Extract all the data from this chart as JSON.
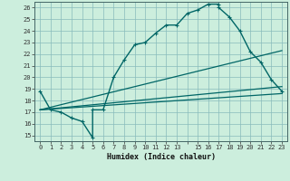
{
  "title": "",
  "xlabel": "Humidex (Indice chaleur)",
  "bg_color": "#cceedd",
  "grid_color": "#88bbbb",
  "line_color": "#006666",
  "xlim": [
    -0.5,
    23.5
  ],
  "ylim": [
    14.5,
    26.5
  ],
  "yticks": [
    15,
    16,
    17,
    18,
    19,
    20,
    21,
    22,
    23,
    24,
    25,
    26
  ],
  "xticks": [
    0,
    1,
    2,
    3,
    4,
    5,
    6,
    7,
    8,
    9,
    10,
    11,
    12,
    13,
    14,
    15,
    16,
    17,
    18,
    19,
    20,
    21,
    22,
    23
  ],
  "xtick_labels": [
    "0",
    "1",
    "2",
    "3",
    "4",
    "5",
    "6",
    "7",
    "8",
    "9",
    "10",
    "11",
    "12",
    "13",
    "",
    "15",
    "16",
    "17",
    "18",
    "19",
    "20",
    "21",
    "22",
    "23"
  ],
  "line1_x": [
    0,
    1,
    2,
    3,
    4,
    5,
    5,
    6,
    7,
    8,
    9,
    10,
    11,
    12,
    13,
    14,
    15,
    16,
    17,
    17,
    18,
    19,
    20,
    21,
    22,
    23
  ],
  "line1_y": [
    18.8,
    17.2,
    17.0,
    16.5,
    16.2,
    14.8,
    17.2,
    17.2,
    20.0,
    21.5,
    22.8,
    23.0,
    23.8,
    24.5,
    24.5,
    25.5,
    25.8,
    26.3,
    26.3,
    26.0,
    25.2,
    24.0,
    22.2,
    21.3,
    19.8,
    18.8
  ],
  "line2_x": [
    0,
    23
  ],
  "line2_y": [
    17.2,
    22.3
  ],
  "line3_x": [
    0,
    23
  ],
  "line3_y": [
    17.2,
    19.2
  ],
  "line4_x": [
    0,
    23
  ],
  "line4_y": [
    17.2,
    18.6
  ]
}
